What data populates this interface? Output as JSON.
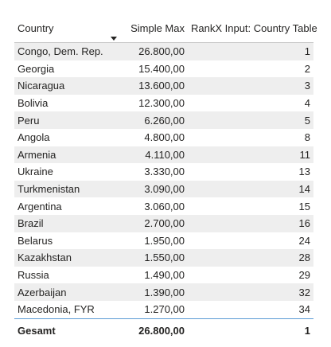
{
  "table": {
    "columns": [
      {
        "label": "Country",
        "align": "left"
      },
      {
        "label": "Simple Max",
        "align": "right",
        "sorted": "descending"
      },
      {
        "label": "RankX Input: Country Table",
        "align": "right"
      }
    ],
    "rows": [
      {
        "country": "Congo, Dem. Rep.",
        "simple_max": "26.800,00",
        "rank": "1"
      },
      {
        "country": "Georgia",
        "simple_max": "15.400,00",
        "rank": "2"
      },
      {
        "country": "Nicaragua",
        "simple_max": "13.600,00",
        "rank": "3"
      },
      {
        "country": "Bolivia",
        "simple_max": "12.300,00",
        "rank": "4"
      },
      {
        "country": "Peru",
        "simple_max": "6.260,00",
        "rank": "5"
      },
      {
        "country": "Angola",
        "simple_max": "4.800,00",
        "rank": "8"
      },
      {
        "country": "Armenia",
        "simple_max": "4.110,00",
        "rank": "11"
      },
      {
        "country": "Ukraine",
        "simple_max": "3.330,00",
        "rank": "13"
      },
      {
        "country": "Turkmenistan",
        "simple_max": "3.090,00",
        "rank": "14"
      },
      {
        "country": "Argentina",
        "simple_max": "3.060,00",
        "rank": "15"
      },
      {
        "country": "Brazil",
        "simple_max": "2.700,00",
        "rank": "16"
      },
      {
        "country": "Belarus",
        "simple_max": "1.950,00",
        "rank": "24"
      },
      {
        "country": "Kazakhstan",
        "simple_max": "1.550,00",
        "rank": "28"
      },
      {
        "country": "Russia",
        "simple_max": "1.490,00",
        "rank": "29"
      },
      {
        "country": "Azerbaijan",
        "simple_max": "1.390,00",
        "rank": "32"
      },
      {
        "country": "Macedonia, FYR",
        "simple_max": "1.270,00",
        "rank": "34"
      }
    ],
    "total": {
      "label": "Gesamt",
      "simple_max": "26.800,00",
      "rank": "1"
    }
  },
  "colors": {
    "alt_row": "#eeeeee",
    "total_border": "#5b9bd5",
    "text": "#252423"
  },
  "icons": {
    "sort": "sort-descending-caret"
  }
}
